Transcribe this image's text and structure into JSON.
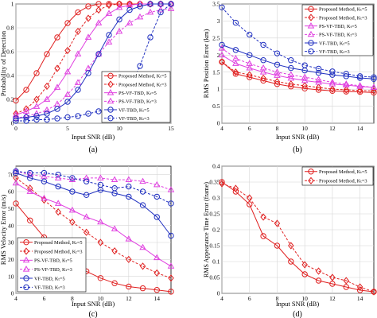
{
  "figure_caption_labels": [
    "(a)",
    "(b)",
    "(c)",
    "(d)"
  ],
  "legend_text": {
    "proposed_k5": "Proposed Method, Kₜ=5",
    "proposed_k3": "Proposed Method, Kₜ=3",
    "psvf_k5": "PS-VF-TBD, Kₜ=5",
    "psvf_k3": "PS-VF-TBD, Kₜ=3",
    "vf_k5": "VF-TBD, Kₜ=5",
    "vf_k3": "VF-TBD, Kₜ=3"
  },
  "colors": {
    "proposed": "#e02020",
    "psvf": "#e040e0",
    "vf": "#2030c0"
  },
  "chart_data": [
    {
      "id": "a",
      "type": "line",
      "caption": "(a)",
      "title": "",
      "xlabel": "Input SNR (dB)",
      "ylabel": "Probability of Detection",
      "xlim": [
        0,
        15
      ],
      "ylim": [
        0,
        1
      ],
      "xticks": [
        0,
        5,
        10,
        15
      ],
      "yticks": [
        0,
        0.2,
        0.4,
        0.6,
        0.8,
        1
      ],
      "ytick_labels": [
        "0",
        "0.2",
        "0.4",
        "0.6",
        "0.8",
        "1"
      ],
      "grid": true,
      "legend_position": "lower-right",
      "x": [
        0,
        1,
        2,
        3,
        4,
        5,
        6,
        7,
        8,
        9,
        10,
        11,
        12,
        13,
        14,
        15
      ],
      "series": [
        {
          "name": "Proposed Method, Kₜ=5",
          "group": "proposed",
          "marker": "o",
          "dash": "solid",
          "values": [
            0.19,
            0.28,
            0.42,
            0.58,
            0.72,
            0.84,
            0.93,
            0.98,
            1.0,
            1.0,
            1.0,
            1.0,
            1.0,
            1.0,
            1.0,
            1.0
          ]
        },
        {
          "name": "Proposed Method, Kₜ=3",
          "group": "proposed",
          "marker": "d",
          "dash": "dashed",
          "values": [
            0.08,
            0.12,
            0.2,
            0.31,
            0.46,
            0.61,
            0.77,
            0.88,
            0.95,
            0.99,
            1.0,
            1.0,
            1.0,
            1.0,
            1.0,
            1.0
          ]
        },
        {
          "name": "PS-VF-TBD, Kₜ=5",
          "group": "psvf",
          "marker": "^",
          "dash": "solid",
          "values": [
            0.07,
            0.1,
            0.14,
            0.2,
            0.3,
            0.43,
            0.58,
            0.72,
            0.84,
            0.92,
            0.97,
            0.99,
            1.0,
            1.0,
            1.0,
            1.0
          ]
        },
        {
          "name": "PS-VF-TBD, Kₜ=3",
          "group": "psvf",
          "marker": "^",
          "dash": "dashed",
          "values": [
            0.04,
            0.06,
            0.08,
            0.11,
            0.16,
            0.24,
            0.34,
            0.46,
            0.58,
            0.68,
            0.77,
            0.84,
            0.89,
            0.93,
            0.95,
            0.96
          ]
        },
        {
          "name": "VF-TBD, Kₜ=5",
          "group": "vf",
          "marker": "o",
          "dash": "solid",
          "values": [
            0.04,
            0.05,
            0.06,
            0.08,
            0.12,
            0.18,
            0.28,
            0.42,
            0.58,
            0.74,
            0.87,
            0.95,
            0.98,
            1.0,
            1.0,
            1.0
          ]
        },
        {
          "name": "VF-TBD, Kₜ=3",
          "group": "vf",
          "marker": "o",
          "dash": "dashed",
          "values": [
            0.02,
            0.02,
            0.03,
            0.03,
            0.04,
            0.05,
            0.06,
            0.08,
            0.1,
            0.14,
            0.2,
            0.3,
            0.48,
            0.72,
            0.93,
            1.0
          ]
        }
      ]
    },
    {
      "id": "b",
      "type": "line",
      "caption": "(b)",
      "title": "",
      "xlabel": "Input SNR (dB)",
      "ylabel": "RMS Position Error (km)",
      "xlim": [
        4,
        15
      ],
      "ylim": [
        0,
        3.5
      ],
      "xticks": [
        4,
        6,
        8,
        10,
        12,
        14
      ],
      "yticks": [
        0,
        0.5,
        1,
        1.5,
        2,
        2.5,
        3,
        3.5
      ],
      "ytick_labels": [
        "0",
        "0.5",
        "1",
        "1.5",
        "2",
        "2.5",
        "3",
        "3.5"
      ],
      "grid": true,
      "legend_position": "top-right",
      "x": [
        4,
        5,
        6,
        7,
        8,
        9,
        10,
        11,
        12,
        13,
        14,
        15
      ],
      "series": [
        {
          "name": "Proposed Method, Kₜ=5",
          "group": "proposed",
          "marker": "o",
          "dash": "solid",
          "values": [
            1.8,
            1.45,
            1.35,
            1.25,
            1.15,
            1.08,
            1.02,
            0.98,
            0.95,
            0.93,
            0.92,
            0.9
          ]
        },
        {
          "name": "Proposed Method, Kₜ=3",
          "group": "proposed",
          "marker": "d",
          "dash": "dashed",
          "values": [
            1.8,
            1.5,
            1.42,
            1.32,
            1.22,
            1.15,
            1.1,
            1.05,
            1.0,
            0.98,
            0.96,
            0.95
          ]
        },
        {
          "name": "PS-VF-TBD, Kₜ=5",
          "group": "psvf",
          "marker": "^",
          "dash": "solid",
          "values": [
            2.0,
            1.75,
            1.62,
            1.5,
            1.4,
            1.32,
            1.25,
            1.2,
            1.15,
            1.12,
            1.08,
            1.05
          ]
        },
        {
          "name": "PS-VF-TBD, Kₜ=3",
          "group": "psvf",
          "marker": "^",
          "dash": "dashed",
          "values": [
            2.2,
            1.9,
            1.75,
            1.62,
            1.5,
            1.42,
            1.35,
            1.28,
            1.2,
            1.15,
            1.1,
            1.05
          ]
        },
        {
          "name": "VF-TBD, Kₜ=5",
          "group": "vf",
          "marker": "o",
          "dash": "solid",
          "values": [
            2.3,
            2.15,
            2.0,
            1.85,
            1.72,
            1.62,
            1.55,
            1.48,
            1.42,
            1.38,
            1.33,
            1.3
          ]
        },
        {
          "name": "VF-TBD, Kₜ=3",
          "group": "vf",
          "marker": "o",
          "dash": "dashed",
          "values": [
            3.4,
            2.95,
            2.6,
            2.3,
            2.05,
            1.85,
            1.7,
            1.6,
            1.52,
            1.45,
            1.38,
            1.35
          ]
        }
      ]
    },
    {
      "id": "c",
      "type": "line",
      "caption": "(c)",
      "title": "",
      "xlabel": "Input SNR (dB)",
      "ylabel": "RMS Velocity Error (m/s)",
      "xlim": [
        4,
        15
      ],
      "ylim": [
        0,
        75
      ],
      "xticks": [
        4,
        6,
        8,
        10,
        12,
        14
      ],
      "yticks": [
        0,
        10,
        20,
        30,
        40,
        50,
        60,
        70
      ],
      "ytick_labels": [
        "0",
        "10",
        "20",
        "30",
        "40",
        "50",
        "60",
        "70"
      ],
      "grid": true,
      "legend_position": "lower-left",
      "x": [
        4,
        5,
        6,
        7,
        8,
        9,
        10,
        11,
        12,
        13,
        14,
        15
      ],
      "series": [
        {
          "name": "Proposed Method, Kₜ=5",
          "group": "proposed",
          "marker": "o",
          "dash": "solid",
          "values": [
            53,
            43,
            33,
            24,
            18,
            13,
            9,
            6,
            4,
            3,
            2,
            1
          ]
        },
        {
          "name": "Proposed Method, Kₜ=3",
          "group": "proposed",
          "marker": "d",
          "dash": "dashed",
          "values": [
            68,
            62,
            55,
            48,
            42,
            36,
            30,
            25,
            20,
            16,
            12,
            9
          ]
        },
        {
          "name": "PS-VF-TBD, Kₜ=5",
          "group": "psvf",
          "marker": "^",
          "dash": "solid",
          "values": [
            65,
            60,
            56,
            53,
            49,
            45,
            42,
            38,
            32,
            27,
            21,
            16
          ]
        },
        {
          "name": "PS-VF-TBD, Kₜ=3",
          "group": "psvf",
          "marker": "^",
          "dash": "dashed",
          "values": [
            72,
            70,
            69,
            68,
            67,
            68,
            68,
            67,
            67,
            66,
            64,
            61
          ]
        },
        {
          "name": "VF-TBD, Kₜ=5",
          "group": "vf",
          "marker": "o",
          "dash": "solid",
          "values": [
            71,
            68,
            66,
            63,
            60,
            58,
            61,
            59,
            57,
            52,
            45,
            34
          ]
        },
        {
          "name": "VF-TBD, Kₜ=3",
          "group": "vf",
          "marker": "o",
          "dash": "dashed",
          "values": [
            72,
            71,
            71,
            70,
            68,
            66,
            64,
            62,
            63,
            60,
            57,
            53
          ]
        }
      ]
    },
    {
      "id": "d",
      "type": "line",
      "caption": "(d)",
      "title": "",
      "xlabel": "Input SNR (dB)",
      "ylabel": "RMS Appearance Time Error (frame)",
      "xlim": [
        4,
        15
      ],
      "ylim": [
        0,
        0.4
      ],
      "xticks": [
        4,
        6,
        8,
        10,
        12,
        14
      ],
      "yticks": [
        0,
        0.05,
        0.1,
        0.15,
        0.2,
        0.25,
        0.3,
        0.35,
        0.4
      ],
      "ytick_labels": [
        "0",
        "0.05",
        "0.1",
        "0.15",
        "0.2",
        "0.25",
        "0.3",
        "0.35",
        "0.4"
      ],
      "grid": true,
      "legend_position": "top-right",
      "x": [
        4,
        5,
        6,
        7,
        8,
        9,
        10,
        11,
        12,
        13,
        14,
        15
      ],
      "series": [
        {
          "name": "Proposed Method, Kₜ=5",
          "group": "proposed",
          "marker": "o",
          "dash": "solid",
          "values": [
            0.35,
            0.32,
            0.28,
            0.18,
            0.15,
            0.1,
            0.06,
            0.04,
            0.03,
            0.02,
            0.01,
            0.005
          ]
        },
        {
          "name": "Proposed Method, Kₜ=3",
          "group": "proposed",
          "marker": "d",
          "dash": "dashed",
          "values": [
            0.345,
            0.33,
            0.3,
            0.24,
            0.22,
            0.15,
            0.09,
            0.07,
            0.05,
            0.04,
            0.02,
            0.005
          ]
        }
      ]
    }
  ]
}
